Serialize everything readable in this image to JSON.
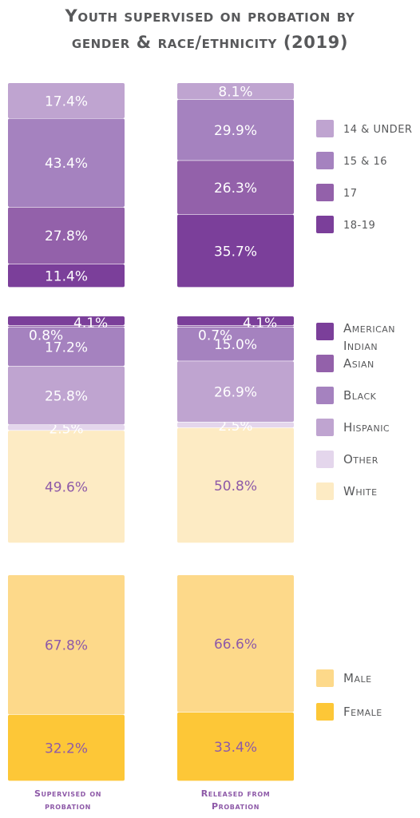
{
  "title": {
    "line1": "Youth supervised on probation by",
    "line2": "gender & race/ethnicity (2019)"
  },
  "chart_data": [
    {
      "type": "bar",
      "stacked": true,
      "percent": true,
      "categories": [
        "Supervised on probation",
        "Released from Probation"
      ],
      "series": [
        {
          "name": "18-19",
          "values": [
            11.4,
            35.7
          ],
          "color": "#7b3f9a"
        },
        {
          "name": "17",
          "values": [
            27.8,
            26.3
          ],
          "color": "#9361aa"
        },
        {
          "name": "15 & 16",
          "values": [
            43.4,
            29.9
          ],
          "color": "#a582bf"
        },
        {
          "name": "14 & UNDER",
          "values": [
            17.4,
            8.1
          ],
          "color": "#bfa4d0"
        }
      ]
    },
    {
      "type": "bar",
      "stacked": true,
      "percent": true,
      "categories": [
        "Supervised on probation",
        "Released from Probation"
      ],
      "series": [
        {
          "name": "White",
          "values": [
            49.6,
            50.8
          ],
          "color": "#fdebc4"
        },
        {
          "name": "Other",
          "values": [
            2.5,
            2.5
          ],
          "color": "#e4d6ec"
        },
        {
          "name": "Hispanic",
          "values": [
            25.8,
            26.9
          ],
          "color": "#bfa4d0"
        },
        {
          "name": "Black",
          "values": [
            17.2,
            15.0
          ],
          "color": "#a582bf"
        },
        {
          "name": "Asian",
          "values": [
            0.8,
            0.7
          ],
          "color": "#9361aa"
        },
        {
          "name": "American Indian",
          "values": [
            4.1,
            4.1
          ],
          "color": "#7b3f9a"
        }
      ]
    },
    {
      "type": "bar",
      "stacked": true,
      "percent": true,
      "categories": [
        "Supervised on probation",
        "Released from Probation"
      ],
      "series": [
        {
          "name": "Female",
          "values": [
            32.2,
            33.4
          ],
          "color": "#fdc737"
        },
        {
          "name": "Male",
          "values": [
            67.8,
            66.6
          ],
          "color": "#fdd98a"
        }
      ]
    }
  ],
  "footer": {
    "col1": [
      "Supervised on",
      "probation"
    ],
    "col2": [
      "Released from",
      "Probation"
    ]
  },
  "colors": {
    "title": "#58595b",
    "label_light": "#ffffff",
    "label_dark": "#8e5aa8",
    "legend_text": "#58595b"
  }
}
